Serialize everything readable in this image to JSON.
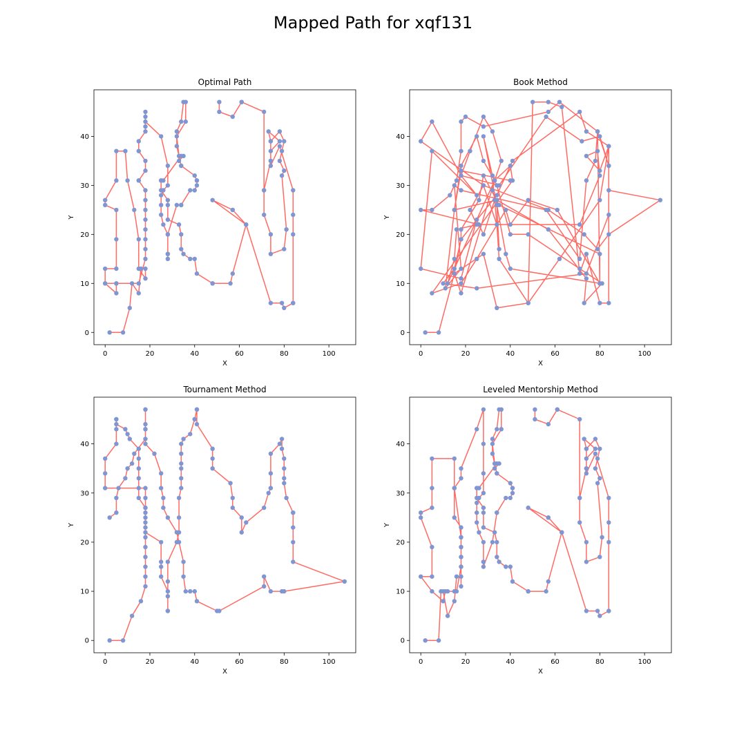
{
  "figure": {
    "title": "Mapped Path for xqf131"
  },
  "style": {
    "path_color": "#ff6a63",
    "point_color": "#7f96d2",
    "frame_color": "#000000"
  },
  "chart_data": [
    {
      "type": "line",
      "title": "Optimal Path",
      "xlabel": "X",
      "ylabel": "Y",
      "xlim": [
        -5,
        112
      ],
      "ylim": [
        -2.5,
        49.5
      ],
      "xticks": [
        0,
        20,
        40,
        60,
        80,
        100
      ],
      "yticks": [
        0,
        10,
        20,
        30,
        40
      ],
      "grid": false,
      "x": [
        2,
        8,
        11,
        12,
        15,
        16,
        18,
        18,
        15,
        15,
        13,
        10,
        9,
        5,
        5,
        0,
        0,
        5,
        5,
        5,
        0,
        0,
        5,
        5,
        0,
        5,
        15,
        18,
        18,
        18,
        18,
        18,
        18,
        18,
        18,
        15,
        15,
        18,
        18,
        15,
        15,
        18,
        18,
        18,
        18,
        18,
        25,
        28,
        28,
        26,
        25,
        25,
        25,
        26,
        28,
        28,
        28,
        28,
        28,
        32,
        34,
        34,
        38,
        40,
        41,
        41,
        41,
        40,
        34,
        34,
        32,
        32,
        34,
        35,
        36,
        36,
        32,
        33,
        33,
        35,
        34,
        26,
        25,
        25,
        25,
        28,
        28,
        28,
        33,
        34,
        34,
        35,
        38,
        40,
        41,
        48,
        48,
        56,
        57,
        63,
        57,
        57,
        48,
        63,
        74,
        79,
        80,
        84,
        84,
        84,
        84,
        84,
        78,
        74,
        74,
        78,
        73,
        74,
        74,
        71,
        71,
        74,
        74,
        80,
        81,
        79,
        80,
        78,
        79,
        80,
        78,
        74,
        74,
        71,
        71,
        61,
        61,
        57,
        51,
        51
      ],
      "y": [
        0,
        0,
        5,
        10,
        8,
        13,
        13,
        11,
        13,
        19,
        25,
        31,
        37,
        37,
        31,
        27,
        26,
        25,
        19,
        13,
        13,
        10,
        8,
        10,
        10,
        10,
        10,
        15,
        17,
        19,
        21,
        23,
        25,
        27,
        29,
        31,
        31,
        33,
        35,
        37,
        39,
        41,
        42,
        44,
        45,
        43,
        40,
        34,
        30,
        29,
        28,
        26,
        24,
        22,
        20,
        16,
        16,
        15,
        20,
        26,
        26,
        26,
        29,
        29,
        30,
        31,
        31,
        32,
        34,
        34,
        38,
        41,
        43,
        47,
        47,
        43,
        40,
        36,
        35,
        36,
        36,
        31,
        31,
        31,
        29,
        27,
        26,
        23,
        22,
        20,
        17,
        16,
        15,
        15,
        12,
        10,
        10,
        10,
        12,
        22,
        25,
        25,
        27,
        22,
        6,
        6,
        5,
        6,
        6,
        20,
        24,
        29,
        38,
        34,
        37,
        39,
        41,
        39,
        35,
        29,
        24,
        20,
        16,
        17,
        21,
        32,
        33,
        35,
        37,
        39,
        41,
        39,
        35,
        29,
        45,
        47,
        47,
        44,
        45,
        47
      ]
    },
    {
      "type": "line",
      "title": "Book Method",
      "xlabel": "X",
      "ylabel": "Y",
      "xlim": [
        -5,
        112
      ],
      "ylim": [
        -2.5,
        49.5
      ],
      "xticks": [
        0,
        20,
        40,
        60,
        80,
        100
      ],
      "yticks": [
        0,
        10,
        20,
        30,
        40
      ],
      "grid": false,
      "x": [
        2,
        8,
        15,
        28,
        34,
        48,
        62,
        80,
        84,
        84,
        80,
        72,
        56,
        35,
        18,
        5,
        0,
        28,
        57,
        73,
        79,
        84,
        107,
        84,
        84,
        74,
        25,
        10,
        15,
        18,
        34,
        41,
        71,
        74,
        84,
        80,
        74,
        79,
        80,
        71,
        26,
        0,
        5,
        13,
        16,
        18,
        18,
        20,
        28,
        57,
        62,
        79,
        80,
        40,
        38,
        34,
        32,
        33,
        12,
        15,
        16,
        25,
        22,
        28,
        34,
        35,
        48,
        50,
        57,
        63,
        71,
        74,
        80,
        84,
        84,
        79,
        78,
        74,
        71,
        56,
        18,
        15,
        18,
        11,
        15,
        18,
        25,
        28,
        33,
        40,
        41,
        5,
        18,
        25,
        38,
        40,
        48,
        61,
        80,
        80,
        35,
        28,
        26,
        18,
        18,
        15,
        18,
        33,
        36,
        32,
        28,
        22,
        18,
        25,
        5,
        0,
        18,
        25,
        28,
        33,
        35,
        34,
        28,
        32,
        34,
        40,
        48,
        71,
        81,
        73,
        74,
        57,
        34,
        15,
        18,
        40
      ],
      "y": [
        0,
        0,
        12,
        16,
        5,
        6,
        15,
        27,
        38,
        34,
        40,
        39,
        44,
        30,
        32,
        43,
        39,
        30,
        25,
        20,
        17,
        20,
        27,
        29,
        24,
        12,
        9,
        10,
        13,
        19,
        28,
        35,
        45,
        41,
        38,
        33,
        36,
        37,
        32,
        22,
        22,
        25,
        25,
        28,
        31,
        37,
        43,
        44,
        42,
        45,
        47,
        41,
        10,
        13,
        16,
        26,
        29,
        31,
        10,
        15,
        21,
        22,
        25,
        30,
        22,
        15,
        6,
        47,
        47,
        46,
        12,
        16,
        6,
        6,
        34,
        41,
        35,
        31,
        15,
        25,
        29,
        30,
        13,
        9,
        25,
        34,
        40,
        35,
        31,
        34,
        31,
        8,
        10,
        15,
        25,
        22,
        27,
        25,
        10,
        16,
        26,
        32,
        27,
        21,
        19,
        12,
        8,
        31,
        35,
        41,
        44,
        37,
        32,
        28,
        37,
        13,
        11,
        23,
        20,
        27,
        17,
        26,
        40,
        32,
        30,
        20,
        20,
        13,
        10,
        6,
        11,
        21,
        27,
        25,
        33,
        31
      ]
    },
    {
      "type": "line",
      "title": "Tournament Method",
      "xlabel": "X",
      "ylabel": "Y",
      "xlim": [
        -5,
        112
      ],
      "ylim": [
        -2.5,
        49.5
      ],
      "xticks": [
        0,
        20,
        40,
        60,
        80,
        100
      ],
      "yticks": [
        0,
        10,
        20,
        30,
        40
      ],
      "grid": false,
      "x": [
        2,
        8,
        12,
        16,
        18,
        18,
        18,
        18,
        18,
        18,
        18,
        18,
        18,
        15,
        15,
        15,
        15,
        15,
        15,
        11,
        10,
        9,
        5,
        5,
        5,
        5,
        5,
        0,
        0,
        0,
        18,
        18,
        18,
        18,
        18,
        18,
        25,
        25,
        25,
        25,
        28,
        28,
        28,
        28,
        28,
        28,
        32,
        33,
        33,
        33,
        34,
        34,
        34,
        34,
        34,
        34,
        35,
        38,
        40,
        40,
        41,
        41,
        41,
        48,
        48,
        48,
        56,
        57,
        57,
        61,
        61,
        63,
        71,
        73,
        74,
        74,
        74,
        74,
        78,
        79,
        79,
        80,
        80,
        80,
        80,
        81,
        84,
        84,
        84,
        84,
        84,
        107,
        80,
        79,
        74,
        71,
        71,
        51,
        50,
        41,
        40,
        38,
        36,
        35,
        35,
        33,
        32,
        28,
        26,
        26,
        25,
        25,
        22,
        18,
        18,
        18,
        18,
        18,
        18,
        18,
        13,
        12,
        10,
        9,
        6,
        5,
        5,
        2
      ],
      "y": [
        0,
        0,
        5,
        8,
        11,
        13,
        15,
        17,
        19,
        21,
        23,
        25,
        27,
        29,
        31,
        33,
        35,
        37,
        39,
        41,
        42,
        43,
        44,
        45,
        45,
        43,
        40,
        37,
        34,
        31,
        31,
        29,
        27,
        26,
        24,
        22,
        20,
        16,
        15,
        13,
        10,
        9,
        6,
        6,
        12,
        16,
        20,
        22,
        25,
        29,
        31,
        33,
        35,
        36,
        38,
        40,
        41,
        42,
        45,
        45,
        47,
        47,
        44,
        39,
        37,
        35,
        32,
        29,
        27,
        25,
        22,
        24,
        27,
        30,
        31,
        31,
        34,
        38,
        40,
        41,
        39,
        37,
        35,
        33,
        32,
        29,
        26,
        26,
        23,
        20,
        16,
        12,
        10,
        10,
        10,
        13,
        11,
        6,
        6,
        8,
        10,
        10,
        10,
        13,
        16,
        20,
        22,
        25,
        27,
        29,
        31,
        34,
        38,
        40,
        43,
        43,
        47,
        47,
        44,
        41,
        38,
        36,
        35,
        33,
        31,
        29,
        26,
        25
      ]
    },
    {
      "type": "line",
      "title": "Leveled Mentorship Method",
      "xlabel": "X",
      "ylabel": "Y",
      "xlim": [
        -5,
        112
      ],
      "ylim": [
        -2.5,
        49.5
      ],
      "xticks": [
        0,
        20,
        40,
        60,
        80,
        100
      ],
      "yticks": [
        0,
        10,
        20,
        30,
        40
      ],
      "grid": false,
      "x": [
        2,
        8,
        9,
        10,
        12,
        15,
        16,
        18,
        18,
        18,
        18,
        18,
        18,
        18,
        15,
        15,
        15,
        5,
        5,
        5,
        0,
        0,
        5,
        5,
        0,
        5,
        10,
        11,
        12,
        15,
        16,
        18,
        18,
        18,
        18,
        15,
        15,
        18,
        18,
        25,
        28,
        28,
        28,
        28,
        26,
        25,
        25,
        25,
        26,
        28,
        28,
        28,
        28,
        32,
        34,
        34,
        38,
        40,
        41,
        41,
        41,
        40,
        34,
        34,
        32,
        32,
        34,
        35,
        36,
        36,
        32,
        33,
        33,
        35,
        34,
        26,
        25,
        25,
        25,
        28,
        28,
        28,
        33,
        34,
        34,
        35,
        38,
        40,
        41,
        48,
        48,
        56,
        57,
        63,
        57,
        57,
        48,
        63,
        74,
        79,
        80,
        84,
        84,
        84,
        84,
        84,
        78,
        74,
        74,
        78,
        73,
        74,
        74,
        71,
        71,
        74,
        74,
        80,
        81,
        79,
        80,
        78,
        79,
        80,
        78,
        74,
        74,
        71,
        71,
        61,
        61,
        57,
        51,
        51
      ],
      "y": [
        0,
        0,
        10,
        10,
        5,
        8,
        13,
        13,
        11,
        15,
        17,
        19,
        21,
        23,
        25,
        31,
        37,
        37,
        31,
        27,
        26,
        25,
        19,
        13,
        13,
        10,
        8,
        10,
        10,
        10,
        10,
        15,
        17,
        19,
        21,
        31,
        31,
        33,
        35,
        43,
        47,
        40,
        34,
        30,
        29,
        28,
        26,
        24,
        22,
        20,
        16,
        16,
        15,
        20,
        26,
        26,
        29,
        29,
        30,
        31,
        31,
        32,
        34,
        34,
        38,
        41,
        43,
        47,
        47,
        43,
        40,
        36,
        35,
        36,
        36,
        31,
        31,
        31,
        29,
        27,
        26,
        23,
        22,
        20,
        17,
        16,
        15,
        15,
        12,
        10,
        10,
        10,
        12,
        22,
        25,
        25,
        27,
        22,
        6,
        6,
        5,
        6,
        6,
        20,
        24,
        29,
        38,
        34,
        37,
        39,
        41,
        39,
        35,
        29,
        24,
        20,
        16,
        17,
        21,
        32,
        33,
        35,
        37,
        39,
        41,
        39,
        35,
        29,
        45,
        47,
        47,
        44,
        45,
        47
      ]
    }
  ]
}
